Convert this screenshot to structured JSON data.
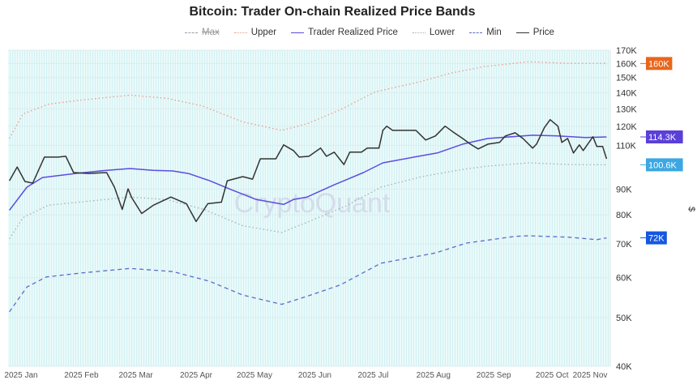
{
  "chart_data": {
    "type": "line",
    "title": "Bitcoin: Trader On-chain Realized Price Bands",
    "watermark": "CryptoQuant",
    "ylabel": "$",
    "y_scale": "log",
    "ylim": [
      40000,
      170000
    ],
    "xlim": [
      "2024-12-30",
      "2025-11-04"
    ],
    "grid": true,
    "legend_position": "top",
    "y_ticks": [
      {
        "value": 170000,
        "label": "170K"
      },
      {
        "value": 160000,
        "label": "160K"
      },
      {
        "value": 150000,
        "label": "150K"
      },
      {
        "value": 140000,
        "label": "140K"
      },
      {
        "value": 130000,
        "label": "130K"
      },
      {
        "value": 120000,
        "label": "120K"
      },
      {
        "value": 110000,
        "label": "110K"
      },
      {
        "value": 90000,
        "label": "90K"
      },
      {
        "value": 80000,
        "label": "80K"
      },
      {
        "value": 70000,
        "label": "70K"
      },
      {
        "value": 60000,
        "label": "60K"
      },
      {
        "value": 50000,
        "label": "50K"
      },
      {
        "value": 40000,
        "label": "40K"
      }
    ],
    "x_ticks": [
      {
        "date": "2025-01-01",
        "label": "2025 Jan"
      },
      {
        "date": "2025-02-01",
        "label": "2025 Feb"
      },
      {
        "date": "2025-03-01",
        "label": "2025 Mar"
      },
      {
        "date": "2025-04-01",
        "label": "2025 Apr"
      },
      {
        "date": "2025-05-01",
        "label": "2025 May"
      },
      {
        "date": "2025-06-01",
        "label": "2025 Jun"
      },
      {
        "date": "2025-07-01",
        "label": "2025 Jul"
      },
      {
        "date": "2025-08-01",
        "label": "2025 Aug"
      },
      {
        "date": "2025-09-01",
        "label": "2025 Sep"
      },
      {
        "date": "2025-10-01",
        "label": "2025 Oct"
      },
      {
        "date": "2025-11-01",
        "label": "2025 Nov"
      }
    ],
    "series": [
      {
        "name": "Max",
        "color": "#9aa0b0",
        "style": "dashed",
        "visible": false,
        "values": []
      },
      {
        "name": "Upper",
        "color": "#e89a8a",
        "style": "dotted",
        "visible": true,
        "last_label": "160K",
        "badge_color": "#e8661c",
        "values": [
          [
            "2024-12-31",
            113500
          ],
          [
            "2025-01-07",
            127000
          ],
          [
            "2025-01-20",
            132800
          ],
          [
            "2025-02-06",
            135300
          ],
          [
            "2025-03-03",
            138400
          ],
          [
            "2025-03-22",
            136400
          ],
          [
            "2025-04-09",
            131800
          ],
          [
            "2025-04-30",
            122400
          ],
          [
            "2025-05-20",
            117800
          ],
          [
            "2025-06-02",
            121400
          ],
          [
            "2025-06-19",
            129400
          ],
          [
            "2025-07-07",
            140500
          ],
          [
            "2025-07-31",
            147500
          ],
          [
            "2025-08-15",
            153100
          ],
          [
            "2025-09-01",
            157700
          ],
          [
            "2025-09-24",
            161300
          ],
          [
            "2025-10-15",
            160100
          ],
          [
            "2025-11-03",
            160000
          ]
        ]
      },
      {
        "name": "Trader Realized Price",
        "color": "#5b4de0",
        "style": "solid",
        "visible": true,
        "last_label": "114.3K",
        "badge_color": "#5a3fd8",
        "values": [
          [
            "2024-12-31",
            81700
          ],
          [
            "2025-01-09",
            90800
          ],
          [
            "2025-01-17",
            94900
          ],
          [
            "2025-02-03",
            96700
          ],
          [
            "2025-02-19",
            98100
          ],
          [
            "2025-03-03",
            98900
          ],
          [
            "2025-03-15",
            98100
          ],
          [
            "2025-03-25",
            97800
          ],
          [
            "2025-04-02",
            96700
          ],
          [
            "2025-04-13",
            93500
          ],
          [
            "2025-04-23",
            90100
          ],
          [
            "2025-05-07",
            85800
          ],
          [
            "2025-05-21",
            83900
          ],
          [
            "2025-05-26",
            85800
          ],
          [
            "2025-06-02",
            86800
          ],
          [
            "2025-06-16",
            91800
          ],
          [
            "2025-06-23",
            94200
          ],
          [
            "2025-07-01",
            97100
          ],
          [
            "2025-07-11",
            101500
          ],
          [
            "2025-07-27",
            104200
          ],
          [
            "2025-08-08",
            106200
          ],
          [
            "2025-08-21",
            110600
          ],
          [
            "2025-09-03",
            113500
          ],
          [
            "2025-09-26",
            115200
          ],
          [
            "2025-10-09",
            114800
          ],
          [
            "2025-10-23",
            114000
          ],
          [
            "2025-11-03",
            114300
          ]
        ]
      },
      {
        "name": "Lower",
        "color": "#a8acb8",
        "style": "dotted",
        "visible": true,
        "last_label": "100.6K",
        "badge_color": "#3ba7e3",
        "values": [
          [
            "2024-12-31",
            71700
          ],
          [
            "2025-01-07",
            79000
          ],
          [
            "2025-01-20",
            83600
          ],
          [
            "2025-02-10",
            85200
          ],
          [
            "2025-03-03",
            86800
          ],
          [
            "2025-03-22",
            85800
          ],
          [
            "2025-04-10",
            82000
          ],
          [
            "2025-04-30",
            76100
          ],
          [
            "2025-05-20",
            73800
          ],
          [
            "2025-06-02",
            77300
          ],
          [
            "2025-06-22",
            83300
          ],
          [
            "2025-07-10",
            90800
          ],
          [
            "2025-07-31",
            95300
          ],
          [
            "2025-08-21",
            98500
          ],
          [
            "2025-09-03",
            100000
          ],
          [
            "2025-09-24",
            101500
          ],
          [
            "2025-10-15",
            100700
          ],
          [
            "2025-11-03",
            100600
          ]
        ]
      },
      {
        "name": "Min",
        "color": "#5a6cc8",
        "style": "dashed",
        "visible": true,
        "last_label": "72K",
        "badge_color": "#1557e0",
        "values": [
          [
            "2024-12-31",
            51300
          ],
          [
            "2025-01-09",
            57500
          ],
          [
            "2025-01-19",
            60200
          ],
          [
            "2025-02-06",
            61300
          ],
          [
            "2025-03-03",
            62600
          ],
          [
            "2025-03-25",
            61700
          ],
          [
            "2025-04-13",
            59000
          ],
          [
            "2025-04-30",
            55400
          ],
          [
            "2025-05-20",
            53100
          ],
          [
            "2025-06-02",
            55100
          ],
          [
            "2025-06-19",
            58000
          ],
          [
            "2025-07-10",
            64100
          ],
          [
            "2025-08-07",
            67200
          ],
          [
            "2025-08-23",
            70300
          ],
          [
            "2025-09-17",
            72500
          ],
          [
            "2025-09-24",
            72700
          ],
          [
            "2025-10-15",
            72200
          ],
          [
            "2025-10-29",
            71400
          ],
          [
            "2025-11-03",
            72000
          ]
        ]
      },
      {
        "name": "Price",
        "color": "#333333",
        "style": "solid",
        "visible": true,
        "values": [
          [
            "2024-12-31",
            93500
          ],
          [
            "2025-01-04",
            99600
          ],
          [
            "2025-01-08",
            93200
          ],
          [
            "2025-01-12",
            92500
          ],
          [
            "2025-01-18",
            104200
          ],
          [
            "2025-01-25",
            104200
          ],
          [
            "2025-01-29",
            104600
          ],
          [
            "2025-02-02",
            97100
          ],
          [
            "2025-02-10",
            96700
          ],
          [
            "2025-02-19",
            97100
          ],
          [
            "2025-02-23",
            90800
          ],
          [
            "2025-02-27",
            82000
          ],
          [
            "2025-03-02",
            90100
          ],
          [
            "2025-03-04",
            86400
          ],
          [
            "2025-03-09",
            80500
          ],
          [
            "2025-03-15",
            83600
          ],
          [
            "2025-03-24",
            86800
          ],
          [
            "2025-04-01",
            84200
          ],
          [
            "2025-04-06",
            77600
          ],
          [
            "2025-04-12",
            84200
          ],
          [
            "2025-04-19",
            84800
          ],
          [
            "2025-04-22",
            93500
          ],
          [
            "2025-04-30",
            95300
          ],
          [
            "2025-05-05",
            94200
          ],
          [
            "2025-05-09",
            103400
          ],
          [
            "2025-05-17",
            103400
          ],
          [
            "2025-05-21",
            110200
          ],
          [
            "2025-05-26",
            107400
          ],
          [
            "2025-05-29",
            104200
          ],
          [
            "2025-06-03",
            104600
          ],
          [
            "2025-06-09",
            108600
          ],
          [
            "2025-06-12",
            104600
          ],
          [
            "2025-06-16",
            106600
          ],
          [
            "2025-06-21",
            100700
          ],
          [
            "2025-06-24",
            106600
          ],
          [
            "2025-06-30",
            106600
          ],
          [
            "2025-07-03",
            108600
          ],
          [
            "2025-07-09",
            108600
          ],
          [
            "2025-07-11",
            117800
          ],
          [
            "2025-07-13",
            120100
          ],
          [
            "2025-07-16",
            117800
          ],
          [
            "2025-07-24",
            117800
          ],
          [
            "2025-07-28",
            117800
          ],
          [
            "2025-08-02",
            112700
          ],
          [
            "2025-08-07",
            114800
          ],
          [
            "2025-08-12",
            120100
          ],
          [
            "2025-08-16",
            117000
          ],
          [
            "2025-08-21",
            113500
          ],
          [
            "2025-08-25",
            110600
          ],
          [
            "2025-08-29",
            108200
          ],
          [
            "2025-09-03",
            110600
          ],
          [
            "2025-09-09",
            111500
          ],
          [
            "2025-09-12",
            114800
          ],
          [
            "2025-09-17",
            116500
          ],
          [
            "2025-09-21",
            113500
          ],
          [
            "2025-09-26",
            108600
          ],
          [
            "2025-09-28",
            110600
          ],
          [
            "2025-10-02",
            119200
          ],
          [
            "2025-10-05",
            123700
          ],
          [
            "2025-10-09",
            120100
          ],
          [
            "2025-10-11",
            111500
          ],
          [
            "2025-10-14",
            113500
          ],
          [
            "2025-10-17",
            106200
          ],
          [
            "2025-10-20",
            110200
          ],
          [
            "2025-10-22",
            107400
          ],
          [
            "2025-10-27",
            114400
          ],
          [
            "2025-10-29",
            109400
          ],
          [
            "2025-11-01",
            109400
          ],
          [
            "2025-11-03",
            103400
          ]
        ]
      }
    ]
  }
}
